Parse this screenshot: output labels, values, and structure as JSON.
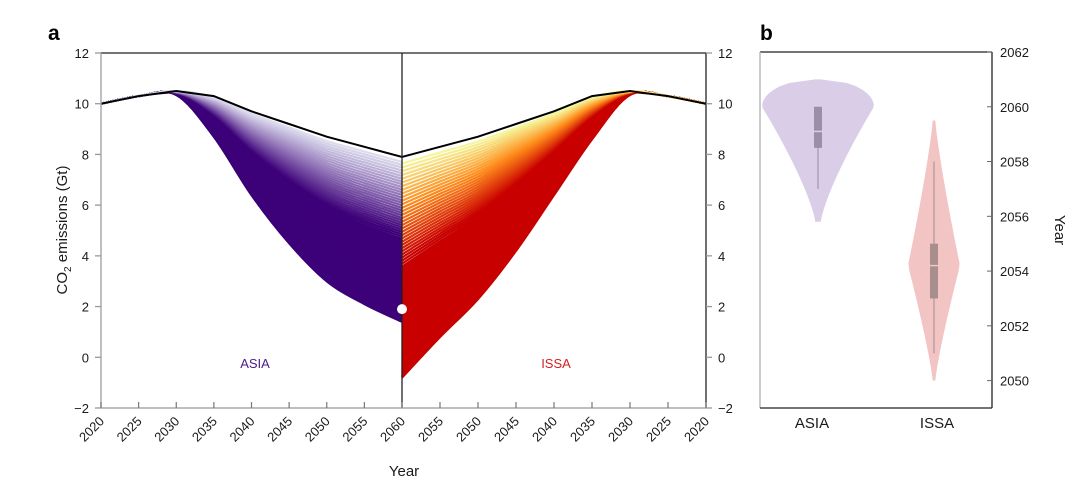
{
  "chart_data": [
    {
      "panel": "a",
      "type": "line",
      "title": "",
      "xlabel": "Year",
      "ylabel": "CO2 emissions (Gt)",
      "ylabel_main": "CO",
      "ylabel_sub": "2",
      "ylabel_rest": " emissions (Gt)",
      "ylim": [
        -2,
        12
      ],
      "yticks": [
        "12",
        "10",
        "8",
        "6",
        "4",
        "2",
        "0",
        "−2"
      ],
      "ytick_values": [
        12,
        10,
        8,
        6,
        4,
        2,
        0,
        -2
      ],
      "left_xticks": [
        "2020",
        "2025",
        "2030",
        "2035",
        "2040",
        "2045",
        "2050",
        "2055",
        "2060"
      ],
      "right_xticks": [
        "2055",
        "2050",
        "2045",
        "2040",
        "2035",
        "2030",
        "2025",
        "2020"
      ],
      "x_years": [
        2020,
        2025,
        2030,
        2035,
        2040,
        2045,
        2050,
        2055,
        2060
      ],
      "grid": false,
      "regions": [
        {
          "name": "ASIA",
          "side": "left",
          "label_color": "#4b1a8c",
          "ensemble_color_low": "#3d0079",
          "ensemble_color_high": "#dcdcee",
          "lower_envelope": [
            10.0,
            10.3,
            10.35,
            8.7,
            6.4,
            4.5,
            3.0,
            2.1,
            1.4
          ],
          "upper_envelope": [
            10.0,
            10.3,
            10.5,
            10.3,
            9.7,
            9.2,
            8.7,
            8.3,
            7.9
          ]
        },
        {
          "name": "ISSA",
          "side": "right",
          "label_color": "#d42020",
          "ensemble_color_low": "#c80000",
          "ensemble_color_mid": "#ff8c1a",
          "ensemble_color_high": "#f5f59a",
          "lower_envelope": [
            10.0,
            10.3,
            10.35,
            8.6,
            6.4,
            4.2,
            2.3,
            0.8,
            -0.8
          ],
          "upper_envelope": [
            10.0,
            10.3,
            10.5,
            10.3,
            9.7,
            9.2,
            8.7,
            8.3,
            7.9
          ]
        }
      ],
      "reference_line": {
        "name": "baseline",
        "color": "#000000",
        "values": [
          10.0,
          10.3,
          10.5,
          10.3,
          9.7,
          9.2,
          8.7,
          8.3,
          7.9
        ]
      },
      "marker": {
        "year": 2060,
        "value": 1.9,
        "color": "#ffffff"
      }
    },
    {
      "panel": "b",
      "type": "violin",
      "title": "",
      "xlabel": "",
      "ylabel": "Year",
      "ylim": [
        2049,
        2062
      ],
      "yticks": [
        "2062",
        "2060",
        "2058",
        "2056",
        "2054",
        "2052",
        "2050"
      ],
      "ytick_values": [
        2062,
        2060,
        2058,
        2056,
        2054,
        2052,
        2050
      ],
      "categories": [
        "ASIA",
        "ISSA"
      ],
      "series": [
        {
          "name": "ASIA",
          "color": "#d9cde8",
          "box_color": "#9a8fa6",
          "min": 2055.8,
          "whisker_low": 2057.0,
          "q1": 2058.5,
          "median": 2059.1,
          "q3": 2060.0,
          "whisker_high": 2060.0,
          "max": 2061.0,
          "mode": 2060.0
        },
        {
          "name": "ISSA",
          "color": "#f2c4c4",
          "box_color": "#a98e8e",
          "min": 2050.0,
          "whisker_low": 2051.0,
          "q1": 2053.0,
          "median": 2054.2,
          "q3": 2055.0,
          "whisker_high": 2058.0,
          "max": 2059.5,
          "mode": 2054.2
        }
      ]
    }
  ],
  "panel_labels": {
    "a": "a",
    "b": "b"
  },
  "labels": {
    "asia": "ASIA",
    "issa": "ISSA",
    "year": "Year"
  }
}
